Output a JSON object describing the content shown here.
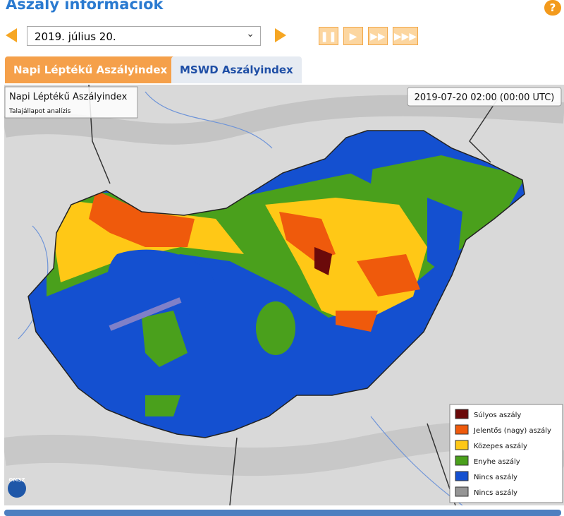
{
  "header": {
    "title": "Aszály információk",
    "help": "?"
  },
  "controls": {
    "date": "2019. július 20."
  },
  "tabs": [
    "Napi Léptékű Aszályindex",
    "MSWD Aszályindex"
  ],
  "map": {
    "title": "Napi Léptékű Aszályindex",
    "subtitle": "Talajállapot analízis",
    "timestamp": "2019-07-20 02:00 (00:00 UTC)",
    "logo": "OMSZ",
    "legend": [
      {
        "label": "Súlyos aszály",
        "color": "#6b0a0a"
      },
      {
        "label": "Jelentős (nagy) aszály",
        "color": "#ef5a0c"
      },
      {
        "label": "Közepes aszály",
        "color": "#ffc816"
      },
      {
        "label": "Enyhe aszály",
        "color": "#4aa01c"
      },
      {
        "label": "Nincs aszály",
        "color": "#1450d0"
      },
      {
        "label": "Nincs aszály",
        "color": "#959595"
      }
    ]
  }
}
